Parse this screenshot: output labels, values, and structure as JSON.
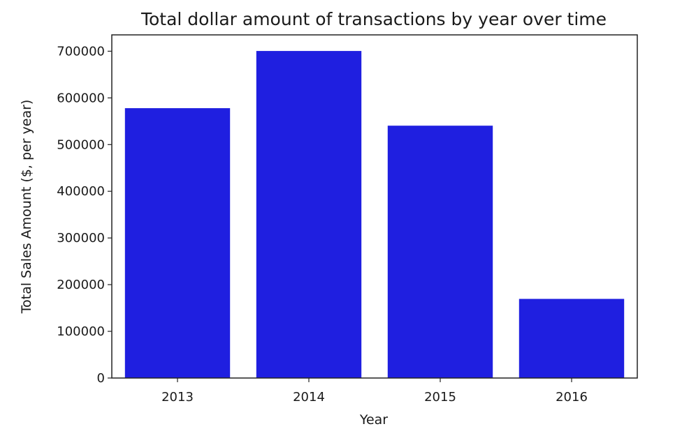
{
  "chart_data": {
    "type": "bar",
    "title": "Total dollar amount of transactions by year over time",
    "xlabel": "Year",
    "ylabel": "Total Sales Amount ($, per year)",
    "categories": [
      "2013",
      "2014",
      "2015",
      "2016"
    ],
    "values": [
      578000,
      700500,
      540500,
      169500
    ],
    "ylim": [
      0,
      735000
    ],
    "yticks": [
      0,
      100000,
      200000,
      300000,
      400000,
      500000,
      600000,
      700000
    ],
    "ytick_labels": [
      "0",
      "100000",
      "200000",
      "300000",
      "400000",
      "500000",
      "600000",
      "700000"
    ],
    "bar_color": "#1f1fe0",
    "grid": false,
    "legend": "none"
  }
}
